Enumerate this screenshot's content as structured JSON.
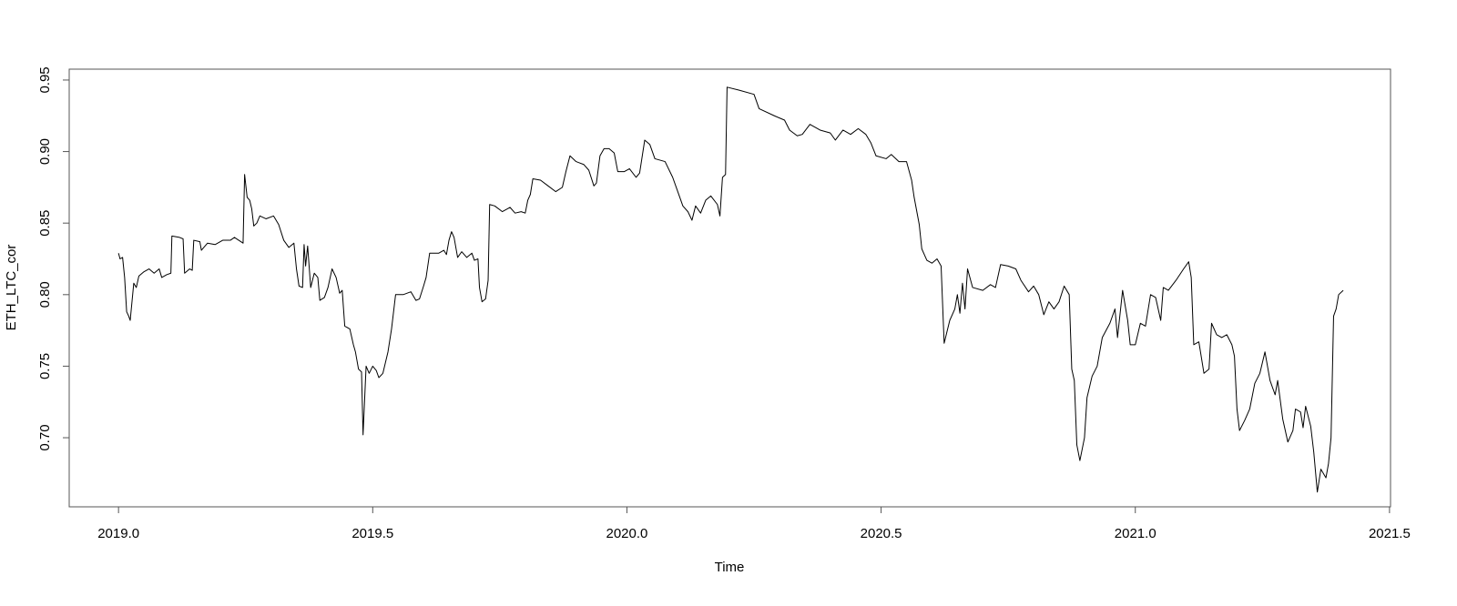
{
  "chart_data": {
    "type": "line",
    "x_label": "Time",
    "y_label": "ETH_LTC_cor",
    "x": [
      2019.0,
      2019.003,
      2019.008,
      2019.012,
      2019.016,
      2019.02,
      2019.023,
      2019.03,
      2019.035,
      2019.04,
      2019.05,
      2019.06,
      2019.07,
      2019.08,
      2019.085,
      2019.095,
      2019.103,
      2019.105,
      2019.12,
      2019.127,
      2019.13,
      2019.14,
      2019.145,
      2019.148,
      2019.16,
      2019.163,
      2019.175,
      2019.19,
      2019.205,
      2019.22,
      2019.228,
      2019.245,
      2019.248,
      2019.253,
      2019.258,
      2019.262,
      2019.266,
      2019.272,
      2019.278,
      2019.29,
      2019.305,
      2019.315,
      2019.325,
      2019.335,
      2019.345,
      2019.35,
      2019.355,
      2019.362,
      2019.365,
      2019.368,
      2019.372,
      2019.378,
      2019.385,
      2019.392,
      2019.396,
      2019.405,
      2019.412,
      2019.42,
      2019.428,
      2019.435,
      2019.44,
      2019.445,
      2019.455,
      2019.462,
      2019.466,
      2019.472,
      2019.478,
      2019.481,
      2019.487,
      2019.493,
      2019.5,
      2019.507,
      2019.512,
      2019.52,
      2019.53,
      2019.537,
      2019.545,
      2019.56,
      2019.575,
      2019.585,
      2019.592,
      2019.6,
      2019.605,
      2019.612,
      2019.63,
      2019.64,
      2019.645,
      2019.65,
      2019.655,
      2019.66,
      2019.667,
      2019.675,
      2019.685,
      2019.695,
      2019.7,
      2019.707,
      2019.71,
      2019.715,
      2019.722,
      2019.727,
      2019.73,
      2019.74,
      2019.755,
      2019.77,
      2019.78,
      2019.792,
      2019.8,
      2019.805,
      2019.81,
      2019.815,
      2019.83,
      2019.845,
      2019.86,
      2019.873,
      2019.88,
      2019.888,
      2019.9,
      2019.915,
      2019.925,
      2019.935,
      2019.94,
      2019.947,
      2019.955,
      2019.965,
      2019.975,
      2019.982,
      2019.995,
      2020.005,
      2020.018,
      2020.025,
      2020.035,
      2020.045,
      2020.055,
      2020.075,
      2020.09,
      2020.1,
      2020.11,
      2020.12,
      2020.128,
      2020.135,
      2020.145,
      2020.155,
      2020.165,
      2020.178,
      2020.183,
      2020.188,
      2020.194,
      2020.197,
      2020.22,
      2020.25,
      2020.26,
      2020.29,
      2020.31,
      2020.32,
      2020.335,
      2020.345,
      2020.36,
      2020.38,
      2020.4,
      2020.41,
      2020.425,
      2020.44,
      2020.455,
      2020.47,
      2020.48,
      2020.49,
      2020.51,
      2020.52,
      2020.535,
      2020.55,
      2020.56,
      2020.565,
      2020.575,
      2020.58,
      2020.59,
      2020.6,
      2020.61,
      2020.618,
      2020.624,
      2020.635,
      2020.645,
      2020.65,
      2020.655,
      2020.66,
      2020.665,
      2020.67,
      2020.68,
      2020.7,
      2020.715,
      2020.725,
      2020.735,
      2020.75,
      2020.765,
      2020.775,
      2020.79,
      2020.8,
      2020.81,
      2020.82,
      2020.83,
      2020.84,
      2020.85,
      2020.86,
      2020.87,
      2020.875,
      2020.88,
      2020.885,
      2020.891,
      2020.9,
      2020.905,
      2020.915,
      2020.925,
      2020.935,
      2020.95,
      2020.96,
      2020.965,
      2020.975,
      2020.985,
      2020.99,
      2021.0,
      2021.01,
      2021.02,
      2021.03,
      2021.04,
      2021.05,
      2021.055,
      2021.065,
      2021.08,
      2021.095,
      2021.105,
      2021.11,
      2021.115,
      2021.125,
      2021.135,
      2021.145,
      2021.15,
      2021.16,
      2021.17,
      2021.18,
      2021.19,
      2021.195,
      2021.2,
      2021.205,
      2021.215,
      2021.225,
      2021.235,
      2021.245,
      2021.255,
      2021.265,
      2021.275,
      2021.28,
      2021.29,
      2021.3,
      2021.31,
      2021.315,
      2021.325,
      2021.33,
      2021.335,
      2021.345,
      2021.351,
      2021.358,
      2021.365,
      2021.375,
      2021.38,
      2021.385,
      2021.39,
      2021.395,
      2021.4,
      2021.409
    ],
    "values": [
      0.829,
      0.825,
      0.826,
      0.812,
      0.788,
      0.785,
      0.782,
      0.808,
      0.805,
      0.813,
      0.816,
      0.818,
      0.815,
      0.818,
      0.812,
      0.814,
      0.815,
      0.841,
      0.84,
      0.839,
      0.815,
      0.818,
      0.817,
      0.838,
      0.837,
      0.831,
      0.836,
      0.835,
      0.838,
      0.838,
      0.84,
      0.836,
      0.884,
      0.868,
      0.866,
      0.86,
      0.848,
      0.85,
      0.855,
      0.853,
      0.855,
      0.849,
      0.838,
      0.833,
      0.836,
      0.818,
      0.806,
      0.805,
      0.835,
      0.82,
      0.834,
      0.805,
      0.815,
      0.812,
      0.796,
      0.798,
      0.805,
      0.818,
      0.812,
      0.801,
      0.803,
      0.778,
      0.776,
      0.765,
      0.76,
      0.748,
      0.746,
      0.702,
      0.75,
      0.745,
      0.75,
      0.747,
      0.742,
      0.745,
      0.76,
      0.776,
      0.8,
      0.8,
      0.802,
      0.796,
      0.797,
      0.806,
      0.812,
      0.829,
      0.829,
      0.831,
      0.828,
      0.838,
      0.844,
      0.84,
      0.826,
      0.83,
      0.826,
      0.829,
      0.824,
      0.825,
      0.805,
      0.795,
      0.797,
      0.81,
      0.863,
      0.862,
      0.858,
      0.861,
      0.857,
      0.858,
      0.857,
      0.866,
      0.87,
      0.881,
      0.88,
      0.876,
      0.872,
      0.875,
      0.886,
      0.897,
      0.893,
      0.891,
      0.887,
      0.876,
      0.878,
      0.897,
      0.902,
      0.902,
      0.899,
      0.886,
      0.886,
      0.888,
      0.882,
      0.885,
      0.908,
      0.905,
      0.895,
      0.893,
      0.882,
      0.872,
      0.862,
      0.858,
      0.852,
      0.862,
      0.857,
      0.866,
      0.869,
      0.863,
      0.855,
      0.882,
      0.884,
      0.945,
      0.943,
      0.94,
      0.93,
      0.925,
      0.922,
      0.915,
      0.911,
      0.912,
      0.919,
      0.915,
      0.913,
      0.908,
      0.915,
      0.912,
      0.916,
      0.912,
      0.906,
      0.897,
      0.895,
      0.898,
      0.893,
      0.893,
      0.88,
      0.868,
      0.849,
      0.832,
      0.824,
      0.822,
      0.825,
      0.82,
      0.766,
      0.782,
      0.79,
      0.8,
      0.787,
      0.808,
      0.79,
      0.818,
      0.805,
      0.803,
      0.807,
      0.805,
      0.821,
      0.82,
      0.818,
      0.81,
      0.802,
      0.806,
      0.8,
      0.786,
      0.795,
      0.79,
      0.795,
      0.806,
      0.8,
      0.748,
      0.74,
      0.695,
      0.684,
      0.7,
      0.728,
      0.743,
      0.75,
      0.77,
      0.78,
      0.79,
      0.77,
      0.803,
      0.782,
      0.765,
      0.765,
      0.78,
      0.778,
      0.8,
      0.798,
      0.782,
      0.805,
      0.803,
      0.81,
      0.818,
      0.823,
      0.812,
      0.765,
      0.767,
      0.745,
      0.748,
      0.78,
      0.772,
      0.77,
      0.772,
      0.765,
      0.757,
      0.72,
      0.705,
      0.712,
      0.72,
      0.738,
      0.745,
      0.76,
      0.74,
      0.73,
      0.74,
      0.713,
      0.697,
      0.705,
      0.72,
      0.718,
      0.707,
      0.722,
      0.708,
      0.69,
      0.662,
      0.678,
      0.672,
      0.682,
      0.7,
      0.785,
      0.79,
      0.8,
      0.803
    ],
    "color": "#000000",
    "xlim": [
      2018.903,
      2021.502
    ],
    "ylim": [
      0.6517,
      0.9576
    ],
    "xticks": [
      {
        "value": 2019,
        "label": "2019.0"
      },
      2019.5,
      {
        "value": 2020,
        "label": "2020.0"
      },
      2020.5,
      {
        "value": 2021,
        "label": "2021.0"
      },
      2021.5
    ],
    "yticks": [
      {
        "value": 0.7,
        "label": "0.70"
      },
      0.75,
      {
        "value": 0.8,
        "label": "0.80"
      },
      0.85,
      {
        "value": 0.9,
        "label": "0.90"
      },
      0.95
    ]
  }
}
